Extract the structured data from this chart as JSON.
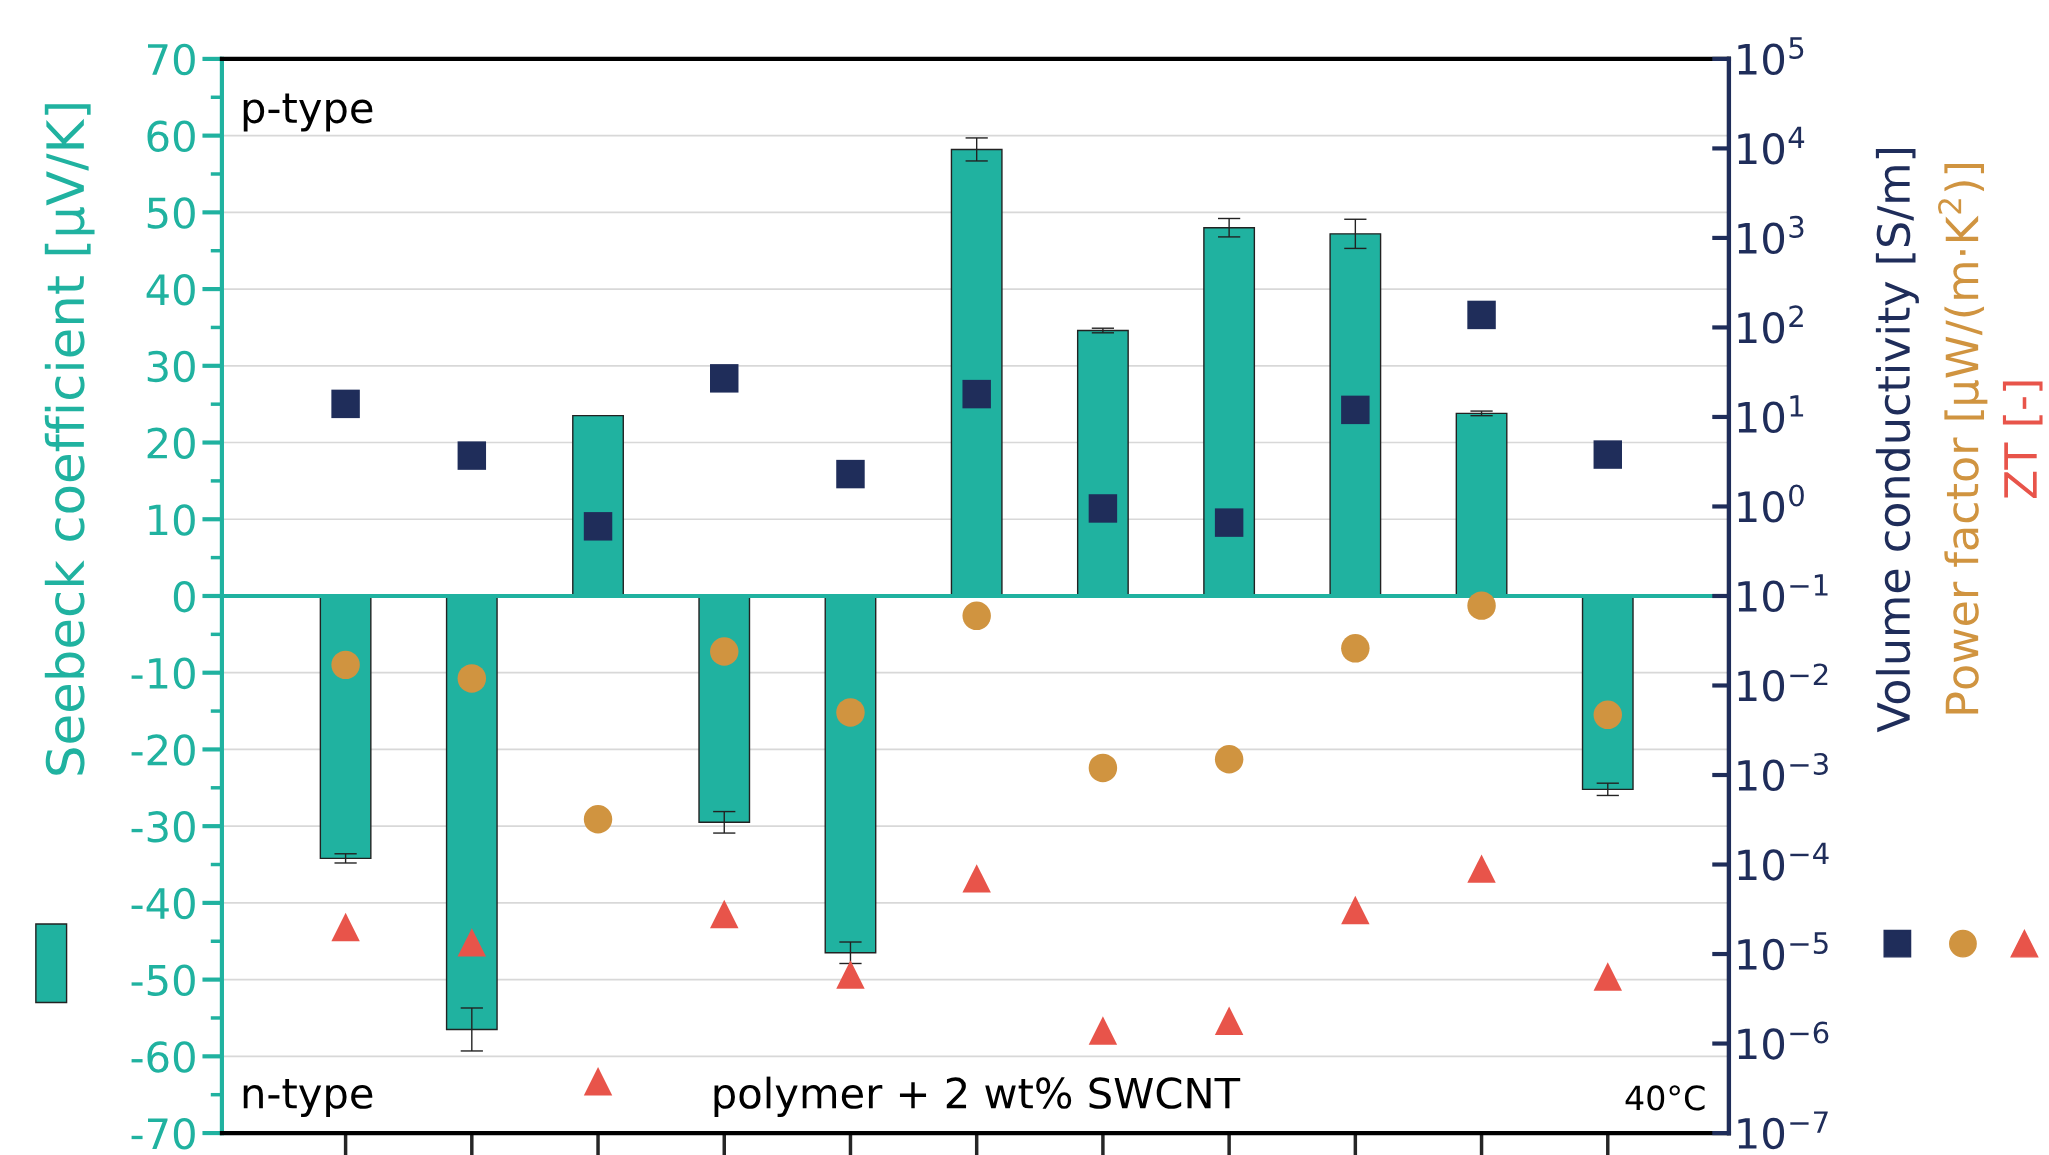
{
  "chart_data": {
    "type": "bar",
    "categories": [
      null,
      null,
      null,
      null,
      null,
      null,
      null,
      null,
      null,
      null,
      null
    ],
    "series": [
      {
        "color": "#20b2a0",
        "values": [
          -34.2,
          -56.5,
          23.5,
          -29.5,
          -46.5,
          58.2,
          34.6,
          48.0,
          47.2,
          23.8,
          -25.2
        ],
        "errors": [
          0.6,
          2.8,
          null,
          1.4,
          1.4,
          1.5,
          0.3,
          1.2,
          1.9,
          0.3,
          0.8
        ]
      },
      {
        "name": "Volume conductivity [S/m]",
        "type": "scatter",
        "axis": "y2",
        "marker": "square",
        "color": "#1f2d5a",
        "values": [
          14,
          3.7,
          0.6,
          27,
          2.3,
          18,
          0.95,
          0.66,
          12,
          138,
          3.8
        ]
      },
      {
        "name": "Power factor [µW/(m·K$^{2}$)]",
        "type": "scatter",
        "axis": "y2",
        "marker": "circle",
        "color": "#d09440",
        "values": [
          0.017,
          0.012,
          0.00032,
          0.024,
          0.005,
          0.06,
          0.0012,
          0.0015,
          0.026,
          0.078,
          0.0047
        ]
      },
      {
        "name": "ZT [-]",
        "type": "scatter",
        "axis": "y2",
        "marker": "triangle",
        "color": "#e8544a",
        "values": [
          2e-05,
          1.35e-05,
          3.8e-07,
          2.8e-05,
          5.9e-06,
          7e-05,
          1.4e-06,
          1.8e-06,
          3.1e-05,
          9e-05,
          5.6e-06
        ]
      }
    ],
    "ylim": [
      -70,
      70
    ],
    "yticks": [
      -70,
      -60,
      -50,
      -40,
      -30,
      -20,
      -10,
      0,
      10,
      20,
      30,
      40,
      50,
      60,
      70
    ],
    "log": "y2",
    "y2lim": [
      1e-07,
      100000.0
    ],
    "y2ticks": [
      {
        "value": 1e-07,
        "label": "10$^{−7}$"
      },
      {
        "value": 1e-06,
        "label": "10$^{−6}$"
      },
      {
        "value": 1e-05,
        "label": "10$^{−5}$"
      },
      {
        "value": 0.0001,
        "label": "10$^{−4}$"
      },
      {
        "value": 0.001,
        "label": "10$^{−3}$"
      },
      {
        "value": 0.01,
        "label": "10$^{−2}$"
      },
      {
        "value": 0.1,
        "label": "10$^{−1}$"
      },
      {
        "value": 1,
        "label": "10$^{0}$"
      },
      {
        "value": 10,
        "label": "10$^{1}$"
      },
      {
        "value": 100,
        "label": "10$^{2}$"
      },
      {
        "value": 1000,
        "label": "10$^{3}$"
      },
      {
        "value": 10000,
        "label": "10$^{4}$"
      },
      {
        "value": 100000,
        "label": "10$^{5}$"
      }
    ],
    "ref_lines": [
      {
        "axis": "y",
        "value": 0,
        "color": "#20b2a0",
        "line_style": "solid"
      }
    ],
    "ylabel": "Seebeck coefficient [µV/K]",
    "grid": "y",
    "legend": "right",
    "tick_labels": "y",
    "annotations": [
      "p-type",
      "n-type",
      "polymer + 2 wt% SWCNT",
      "40°C"
    ]
  }
}
